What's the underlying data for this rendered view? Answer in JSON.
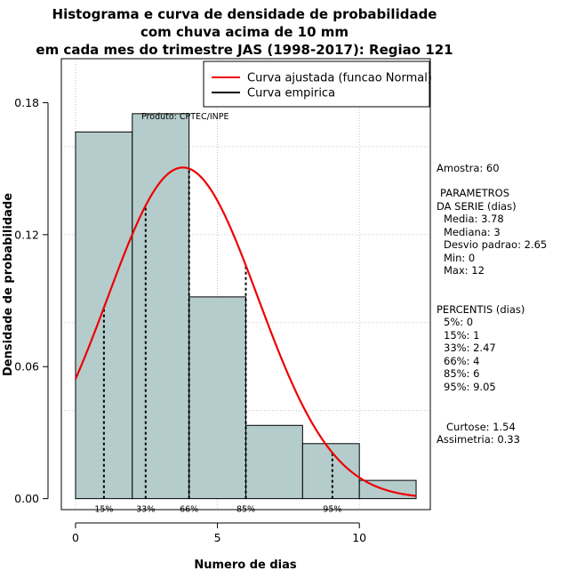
{
  "chart_data": {
    "type": "histogram",
    "title_lines": [
      "Histograma e curva de densidade de probabilidade",
      "com chuva acima de 10 mm",
      "em cada mes do trimestre JAS (1998-2017): Regiao 121"
    ],
    "xlabel": "Numero de dias",
    "ylabel": "Densidade de probabilidade",
    "xlim": [
      -0.5,
      12.5
    ],
    "ylim": [
      -0.005,
      0.2
    ],
    "x_ticks": [
      0,
      5,
      10
    ],
    "y_ticks": [
      0.0,
      0.06,
      0.12,
      0.18
    ],
    "y_tick_labels": [
      "0.00",
      "0.06",
      "0.12",
      "0.18"
    ],
    "grid": true,
    "bars": [
      {
        "x0": 0,
        "x1": 2,
        "density": 0.1667
      },
      {
        "x0": 2,
        "x1": 4,
        "density": 0.175
      },
      {
        "x0": 4,
        "x1": 6,
        "density": 0.0917
      },
      {
        "x0": 6,
        "x1": 8,
        "density": 0.0333
      },
      {
        "x0": 8,
        "x1": 10,
        "density": 0.025
      },
      {
        "x0": 10,
        "x1": 12,
        "density": 0.0083
      }
    ],
    "bar_color": "#b5cccc",
    "normal_curve": {
      "mean": 3.78,
      "sd": 2.65,
      "from": 0,
      "to": 12,
      "color": "#ee0000"
    },
    "percentile_lines": [
      {
        "label": "15%",
        "x": 1
      },
      {
        "label": "33%",
        "x": 2.47
      },
      {
        "label": "66%",
        "x": 4
      },
      {
        "label": "85%",
        "x": 6
      },
      {
        "label": "95%",
        "x": 9.05
      }
    ],
    "annotation": "Produto: CPTEC/INPE",
    "legend": [
      {
        "label": "Curva ajustada (funcao Normal)",
        "color": "#ee0000"
      },
      {
        "label": "Curva empirica",
        "color": "#000000"
      }
    ],
    "legend_position": "top-right",
    "stats": {
      "amostra": "Amostra: 60",
      "params_title_1": "PARAMETROS",
      "params_title_2": "DA SERIE (dias)",
      "params": [
        "Media: 3.78",
        "Mediana: 3",
        "Desvio padrao: 2.65",
        "Min: 0",
        "Max: 12"
      ],
      "percentis_title": "PERCENTIS (dias)",
      "percentis": [
        "5%: 0",
        "15%: 1",
        "33%: 2.47",
        "66%: 4",
        "85%: 6",
        "95%: 9.05"
      ],
      "curtose": "Curtose: 1.54",
      "assimetria": "Assimetria: 0.33"
    }
  }
}
